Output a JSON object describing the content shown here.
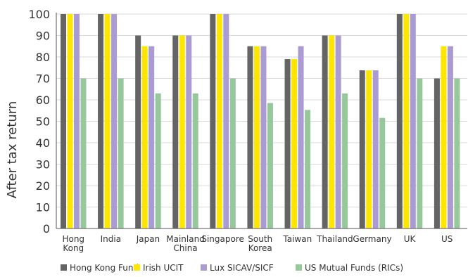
{
  "chart_data": {
    "type": "bar",
    "categories": [
      [
        "Hong",
        "Kong"
      ],
      [
        "India"
      ],
      [
        "Japan"
      ],
      [
        "Mainland",
        "China"
      ],
      [
        "Singapore"
      ],
      [
        "South",
        "Korea"
      ],
      [
        "Taiwan"
      ],
      [
        "Thailand"
      ],
      [
        "Germany"
      ],
      [
        "UK"
      ],
      [
        "US"
      ]
    ],
    "series": [
      {
        "name": "Hong Kong Fund",
        "color": "#646464",
        "values": [
          100,
          100,
          90,
          90,
          100,
          85,
          79,
          90,
          73.75,
          100,
          70
        ]
      },
      {
        "name": "Irish UCIT",
        "color": "#FFE600",
        "values": [
          100,
          100,
          85,
          90,
          100,
          85,
          79,
          90,
          73.75,
          100,
          85
        ]
      },
      {
        "name": "Lux SICAV/SICF",
        "color": "#AA9BD2",
        "values": [
          100,
          100,
          85,
          90,
          100,
          85,
          85,
          90,
          73.75,
          100,
          85
        ]
      },
      {
        "name": "US Mutual Funds (RICs)",
        "color": "#96C89B",
        "values": [
          70,
          70,
          63,
          63,
          70,
          58.5,
          55.3,
          63,
          51.6,
          70,
          70
        ]
      }
    ],
    "ylabel": "After tax return",
    "ylim": [
      0,
      100
    ],
    "yticks": [
      0,
      10,
      20,
      30,
      40,
      50,
      60,
      70,
      80,
      90,
      100
    ],
    "legend_position": "bottom",
    "grid": "horizontal"
  }
}
